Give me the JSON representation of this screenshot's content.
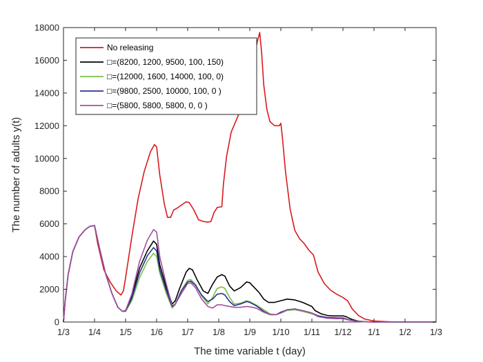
{
  "chart_data": {
    "type": "line",
    "title": "",
    "xlabel": "The time variable t (day)",
    "ylabel": "The number of adults y(t)",
    "categories": [
      "1/3",
      "1/4",
      "1/5",
      "1/6",
      "1/7",
      "1/8",
      "1/9",
      "1/10",
      "1/11",
      "1/12",
      "1/1",
      "1/2",
      "1/3"
    ],
    "ylim": [
      0,
      18000
    ],
    "yticks": [
      0,
      2000,
      4000,
      6000,
      8000,
      10000,
      12000,
      14000,
      16000,
      18000
    ],
    "grid": false,
    "legend_position": "top-left",
    "series": [
      {
        "name": "No releasing",
        "color": "#d7191c",
        "points": [
          [
            0,
            0
          ],
          [
            0.05,
            1200
          ],
          [
            0.15,
            2900
          ],
          [
            0.3,
            4300
          ],
          [
            0.5,
            5200
          ],
          [
            0.7,
            5650
          ],
          [
            0.85,
            5850
          ],
          [
            1,
            5900
          ],
          [
            1.1,
            4800
          ],
          [
            1.3,
            3200
          ],
          [
            1.5,
            2450
          ],
          [
            1.7,
            1900
          ],
          [
            1.85,
            1650
          ],
          [
            1.93,
            1900
          ],
          [
            2,
            2700
          ],
          [
            2.2,
            5200
          ],
          [
            2.4,
            7500
          ],
          [
            2.6,
            9200
          ],
          [
            2.8,
            10400
          ],
          [
            2.93,
            10850
          ],
          [
            3,
            10700
          ],
          [
            3.1,
            9000
          ],
          [
            3.25,
            7200
          ],
          [
            3.35,
            6400
          ],
          [
            3.45,
            6400
          ],
          [
            3.55,
            6850
          ],
          [
            3.65,
            6950
          ],
          [
            3.8,
            7150
          ],
          [
            3.95,
            7350
          ],
          [
            4.05,
            7300
          ],
          [
            4.2,
            6850
          ],
          [
            4.35,
            6250
          ],
          [
            4.5,
            6150
          ],
          [
            4.65,
            6100
          ],
          [
            4.75,
            6150
          ],
          [
            4.85,
            6700
          ],
          [
            4.95,
            7000
          ],
          [
            5.1,
            7050
          ],
          [
            5.15,
            8400
          ],
          [
            5.25,
            10100
          ],
          [
            5.4,
            11600
          ],
          [
            5.6,
            12500
          ],
          [
            5.8,
            13400
          ],
          [
            5.9,
            13800
          ],
          [
            6,
            14900
          ],
          [
            6.15,
            16300
          ],
          [
            6.25,
            17200
          ],
          [
            6.32,
            17700
          ],
          [
            6.38,
            16500
          ],
          [
            6.45,
            14500
          ],
          [
            6.55,
            13000
          ],
          [
            6.65,
            12250
          ],
          [
            6.8,
            12000
          ],
          [
            6.95,
            12000
          ],
          [
            7,
            12150
          ],
          [
            7.05,
            11300
          ],
          [
            7.15,
            9200
          ],
          [
            7.3,
            6900
          ],
          [
            7.45,
            5600
          ],
          [
            7.6,
            5100
          ],
          [
            7.75,
            4800
          ],
          [
            7.9,
            4400
          ],
          [
            8,
            4200
          ],
          [
            8.05,
            4100
          ],
          [
            8.2,
            3050
          ],
          [
            8.4,
            2350
          ],
          [
            8.6,
            1950
          ],
          [
            8.8,
            1700
          ],
          [
            9,
            1500
          ],
          [
            9.15,
            1300
          ],
          [
            9.3,
            800
          ],
          [
            9.5,
            400
          ],
          [
            9.7,
            180
          ],
          [
            10,
            60
          ],
          [
            10.5,
            15
          ],
          [
            11,
            0
          ],
          [
            12,
            0
          ]
        ]
      },
      {
        "name": "□=(8200, 1200, 9500, 100, 150)",
        "color": "#000000",
        "points": [
          [
            0,
            0
          ],
          [
            0.05,
            1200
          ],
          [
            0.15,
            2900
          ],
          [
            0.3,
            4300
          ],
          [
            0.5,
            5200
          ],
          [
            0.7,
            5650
          ],
          [
            0.85,
            5850
          ],
          [
            1,
            5900
          ],
          [
            1.15,
            4600
          ],
          [
            1.35,
            3000
          ],
          [
            1.55,
            1800
          ],
          [
            1.75,
            900
          ],
          [
            1.9,
            650
          ],
          [
            2,
            700
          ],
          [
            2.2,
            1600
          ],
          [
            2.45,
            3300
          ],
          [
            2.7,
            4350
          ],
          [
            2.9,
            4950
          ],
          [
            3,
            4750
          ],
          [
            3.1,
            3500
          ],
          [
            3.3,
            2200
          ],
          [
            3.5,
            1100
          ],
          [
            3.6,
            1300
          ],
          [
            3.75,
            2100
          ],
          [
            3.95,
            3050
          ],
          [
            4.05,
            3280
          ],
          [
            4.15,
            3200
          ],
          [
            4.3,
            2600
          ],
          [
            4.5,
            1900
          ],
          [
            4.65,
            1750
          ],
          [
            4.8,
            2300
          ],
          [
            4.95,
            2750
          ],
          [
            5.1,
            2900
          ],
          [
            5.2,
            2800
          ],
          [
            5.35,
            2200
          ],
          [
            5.5,
            1900
          ],
          [
            5.7,
            2100
          ],
          [
            5.9,
            2450
          ],
          [
            6,
            2400
          ],
          [
            6.15,
            2100
          ],
          [
            6.3,
            1800
          ],
          [
            6.45,
            1400
          ],
          [
            6.6,
            1200
          ],
          [
            6.8,
            1200
          ],
          [
            7,
            1300
          ],
          [
            7.2,
            1400
          ],
          [
            7.45,
            1350
          ],
          [
            7.7,
            1200
          ],
          [
            8,
            950
          ],
          [
            8.1,
            700
          ],
          [
            8.3,
            500
          ],
          [
            8.5,
            400
          ],
          [
            8.7,
            370
          ],
          [
            8.9,
            370
          ],
          [
            9,
            380
          ],
          [
            9.1,
            330
          ],
          [
            9.3,
            150
          ],
          [
            9.5,
            50
          ],
          [
            9.8,
            10
          ],
          [
            10,
            0
          ],
          [
            12,
            0
          ]
        ]
      },
      {
        "name": "□=(12000, 1600, 14000, 100, 0)",
        "color": "#77c04b",
        "points": [
          [
            0,
            0
          ],
          [
            0.05,
            1200
          ],
          [
            0.15,
            2900
          ],
          [
            0.3,
            4300
          ],
          [
            0.5,
            5200
          ],
          [
            0.7,
            5650
          ],
          [
            0.85,
            5850
          ],
          [
            1,
            5900
          ],
          [
            1.15,
            4600
          ],
          [
            1.35,
            3000
          ],
          [
            1.55,
            1800
          ],
          [
            1.75,
            900
          ],
          [
            1.9,
            650
          ],
          [
            2,
            650
          ],
          [
            2.2,
            1300
          ],
          [
            2.45,
            2700
          ],
          [
            2.7,
            3700
          ],
          [
            2.9,
            4200
          ],
          [
            3,
            4000
          ],
          [
            3.1,
            3000
          ],
          [
            3.3,
            1800
          ],
          [
            3.5,
            850
          ],
          [
            3.6,
            1050
          ],
          [
            3.8,
            1950
          ],
          [
            4,
            2550
          ],
          [
            4.1,
            2600
          ],
          [
            4.25,
            2300
          ],
          [
            4.45,
            1600
          ],
          [
            4.65,
            1100
          ],
          [
            4.8,
            1500
          ],
          [
            4.95,
            2050
          ],
          [
            5.1,
            2150
          ],
          [
            5.2,
            2050
          ],
          [
            5.35,
            1500
          ],
          [
            5.5,
            1100
          ],
          [
            5.7,
            1150
          ],
          [
            5.9,
            1300
          ],
          [
            6,
            1250
          ],
          [
            6.2,
            1050
          ],
          [
            6.45,
            750
          ],
          [
            6.65,
            500
          ],
          [
            6.85,
            450
          ],
          [
            7,
            550
          ],
          [
            7.2,
            700
          ],
          [
            7.45,
            750
          ],
          [
            7.7,
            650
          ],
          [
            8,
            500
          ],
          [
            8.2,
            350
          ],
          [
            8.5,
            250
          ],
          [
            8.8,
            230
          ],
          [
            9,
            220
          ],
          [
            9.2,
            120
          ],
          [
            9.5,
            40
          ],
          [
            9.8,
            8
          ],
          [
            10,
            0
          ],
          [
            12,
            0
          ]
        ]
      },
      {
        "name": "□=(9800, 2500, 10000, 100, 0 )",
        "color": "#2b2f8f",
        "points": [
          [
            0,
            0
          ],
          [
            0.05,
            1200
          ],
          [
            0.15,
            2900
          ],
          [
            0.3,
            4300
          ],
          [
            0.5,
            5200
          ],
          [
            0.7,
            5650
          ],
          [
            0.85,
            5850
          ],
          [
            1,
            5900
          ],
          [
            1.15,
            4600
          ],
          [
            1.35,
            3000
          ],
          [
            1.55,
            1800
          ],
          [
            1.75,
            900
          ],
          [
            1.9,
            650
          ],
          [
            2,
            670
          ],
          [
            2.2,
            1450
          ],
          [
            2.45,
            3000
          ],
          [
            2.7,
            4050
          ],
          [
            2.9,
            4550
          ],
          [
            3,
            4350
          ],
          [
            3.1,
            3200
          ],
          [
            3.3,
            2000
          ],
          [
            3.5,
            950
          ],
          [
            3.6,
            1100
          ],
          [
            3.8,
            1900
          ],
          [
            4,
            2450
          ],
          [
            4.1,
            2500
          ],
          [
            4.25,
            2250
          ],
          [
            4.45,
            1650
          ],
          [
            4.65,
            1250
          ],
          [
            4.8,
            1400
          ],
          [
            4.95,
            1700
          ],
          [
            5.1,
            1750
          ],
          [
            5.2,
            1650
          ],
          [
            5.35,
            1250
          ],
          [
            5.5,
            1000
          ],
          [
            5.7,
            1100
          ],
          [
            5.9,
            1250
          ],
          [
            6,
            1200
          ],
          [
            6.2,
            1000
          ],
          [
            6.45,
            650
          ],
          [
            6.65,
            450
          ],
          [
            6.85,
            450
          ],
          [
            7,
            600
          ],
          [
            7.2,
            750
          ],
          [
            7.45,
            800
          ],
          [
            7.7,
            700
          ],
          [
            8,
            550
          ],
          [
            8.2,
            380
          ],
          [
            8.5,
            280
          ],
          [
            8.8,
            250
          ],
          [
            9,
            250
          ],
          [
            9.2,
            130
          ],
          [
            9.5,
            40
          ],
          [
            9.8,
            8
          ],
          [
            10,
            0
          ],
          [
            12,
            0
          ]
        ]
      },
      {
        "name": "□=(5800, 5800, 5800, 0, 0 )",
        "color": "#a34fa1",
        "points": [
          [
            0,
            0
          ],
          [
            0.05,
            1200
          ],
          [
            0.15,
            2900
          ],
          [
            0.3,
            4300
          ],
          [
            0.5,
            5200
          ],
          [
            0.7,
            5650
          ],
          [
            0.85,
            5850
          ],
          [
            1,
            5900
          ],
          [
            1.15,
            4600
          ],
          [
            1.35,
            3000
          ],
          [
            1.55,
            1800
          ],
          [
            1.75,
            900
          ],
          [
            1.9,
            650
          ],
          [
            2,
            700
          ],
          [
            2.2,
            1700
          ],
          [
            2.45,
            3700
          ],
          [
            2.7,
            5000
          ],
          [
            2.9,
            5650
          ],
          [
            3,
            5500
          ],
          [
            3.1,
            4000
          ],
          [
            3.3,
            2400
          ],
          [
            3.5,
            1000
          ],
          [
            3.6,
            1100
          ],
          [
            3.8,
            1750
          ],
          [
            4,
            2350
          ],
          [
            4.1,
            2400
          ],
          [
            4.25,
            2100
          ],
          [
            4.45,
            1400
          ],
          [
            4.65,
            950
          ],
          [
            4.8,
            850
          ],
          [
            4.95,
            1050
          ],
          [
            5.1,
            1050
          ],
          [
            5.2,
            1000
          ],
          [
            5.35,
            950
          ],
          [
            5.5,
            900
          ],
          [
            5.7,
            900
          ],
          [
            5.9,
            950
          ],
          [
            6,
            930
          ],
          [
            6.2,
            850
          ],
          [
            6.45,
            600
          ],
          [
            6.65,
            450
          ],
          [
            6.85,
            450
          ],
          [
            7,
            550
          ],
          [
            7.2,
            750
          ],
          [
            7.45,
            780
          ],
          [
            7.7,
            700
          ],
          [
            8,
            550
          ],
          [
            8.2,
            330
          ],
          [
            8.5,
            230
          ],
          [
            8.8,
            200
          ],
          [
            9,
            210
          ],
          [
            9.2,
            110
          ],
          [
            9.5,
            35
          ],
          [
            9.8,
            6
          ],
          [
            10,
            0
          ],
          [
            12,
            0
          ]
        ]
      }
    ]
  }
}
